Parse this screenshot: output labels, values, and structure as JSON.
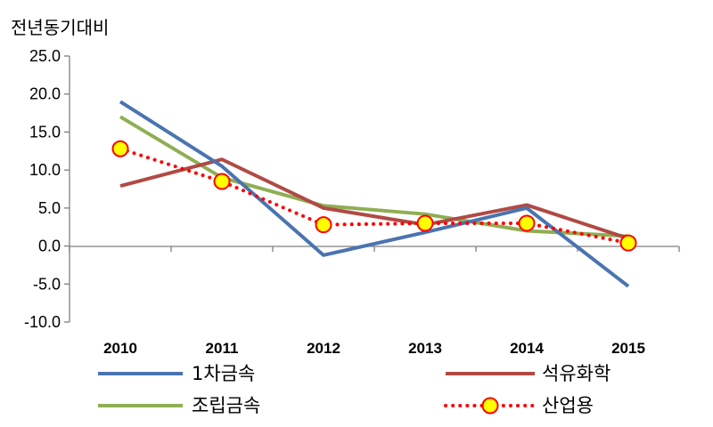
{
  "chart_data": {
    "type": "line",
    "ylabel": "전년동기대비",
    "xlabel": "",
    "categories": [
      "2010",
      "2011",
      "2012",
      "2013",
      "2014",
      "2015"
    ],
    "ylim": [
      -10.0,
      25.0
    ],
    "yticks": [
      "25.0",
      "20.0",
      "15.0",
      "10.0",
      "5.0",
      "0.0",
      "-5.0",
      "-10.0"
    ],
    "grid": false,
    "legend_position": "bottom",
    "series": [
      {
        "name": "1차금속",
        "color": "#4a74b0",
        "style": "solid",
        "values": [
          19.0,
          10.5,
          -1.2,
          1.8,
          5.0,
          -5.3
        ]
      },
      {
        "name": "석유화학",
        "color": "#b04a45",
        "style": "solid",
        "values": [
          7.9,
          11.4,
          5.0,
          2.8,
          5.4,
          1.0
        ]
      },
      {
        "name": "조립금속",
        "color": "#8fae53",
        "style": "solid",
        "values": [
          17.0,
          9.0,
          5.3,
          4.2,
          2.0,
          1.3
        ]
      },
      {
        "name": "산업용",
        "color": "#ff0000",
        "style": "dotted",
        "marker_fill": "#ffff00",
        "marker_stroke": "#ff0000",
        "values": [
          12.8,
          8.5,
          2.8,
          3.0,
          3.0,
          0.4
        ]
      }
    ]
  }
}
